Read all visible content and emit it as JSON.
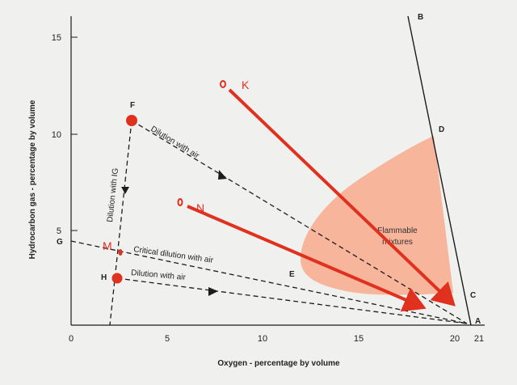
{
  "axes": {
    "x_title": "Oxygen - percentage by volume",
    "y_title": "Hydrocarbon gas - percentage by volume",
    "x_ticks": [
      "0",
      "5",
      "10",
      "15",
      "20",
      "21"
    ],
    "y_ticks": [
      "5",
      "10",
      "15"
    ]
  },
  "points": {
    "A": "A",
    "B": "B",
    "C": "C",
    "D": "D",
    "E": "E",
    "F": "F",
    "G": "G",
    "H": "H"
  },
  "line_labels": {
    "dilution_ig": "Dilution with IG",
    "dilution_air_upper": "Dilution with air",
    "critical": "Critical dilution with air",
    "dilution_air_lower": "Dilution with air"
  },
  "region_label": {
    "line1": "Flammable",
    "line2": "mixtures"
  },
  "annotations": {
    "K": "K",
    "N": "N",
    "M": "M"
  },
  "colors": {
    "flammable": "#f7b59c",
    "red": "#e0311f",
    "ink": "#1c1c1c"
  }
}
